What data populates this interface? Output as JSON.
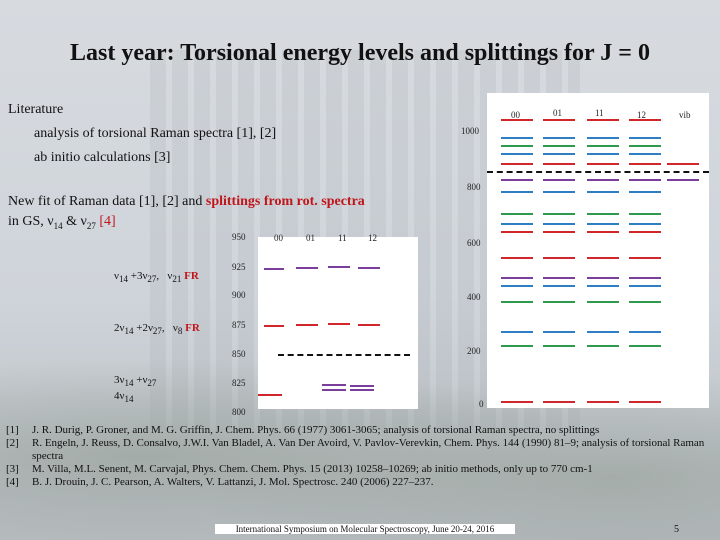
{
  "title": "Last year: Torsional energy levels and splittings for J = 0",
  "literature": {
    "heading": "Literature",
    "line1": "analysis of torsional Raman spectra [1], [2]",
    "line2": "ab initio calculations  [3]"
  },
  "newfit": {
    "prefix": "New fit of Raman data [1], [2] and ",
    "highlight": "splittings from rot. spectra",
    "line2_prefix": " in GS, ν",
    "sub1": "14",
    "mid": " & ν",
    "sub2": "27",
    "ref": " [4]"
  },
  "small_chart": {
    "y_ticks": [
      "950",
      "925",
      "900",
      "875",
      "850",
      "825",
      "800"
    ],
    "columns": [
      "00",
      "01",
      "11",
      "12"
    ],
    "state_labels": [
      {
        "text": "ν14 +3ν27,   ν21  FR"
      },
      {
        "text": "2ν14 +2ν27,   ν8  FR"
      },
      {
        "text": "3ν14 +ν27"
      },
      {
        "text": "4ν14"
      }
    ]
  },
  "big_chart": {
    "y_ticks": [
      "1000",
      "800",
      "600",
      "400",
      "200",
      "0"
    ],
    "columns": [
      "00",
      "01",
      "11",
      "12",
      "vib"
    ]
  },
  "references": [
    {
      "num": "[1]",
      "text": "J. R. Durig, P. Groner, and M. G. Griffin, J. Chem. Phys.  66 (1977) 3061-3065; analysis of torsional Raman spectra, no splittings"
    },
    {
      "num": "[2]",
      "text": "R. Engeln, J. Reuss, D. Consalvo, J.W.I. Van Bladel, A. Van Der Avoird, V. Pavlov-Verevkin, Chem. Phys. 144 (1990) 81–9;  analysis of torsional Raman spectra"
    },
    {
      "num": "[3]",
      "text": "M. Villa, M.L. Senent, M. Carvajal, Phys. Chem. Chem. Phys. 15 (2013) 10258–10269; ab initio methods, only up to 770 cm-1"
    },
    {
      "num": "[4]",
      "text": "B. J. Drouin, J. C. Pearson, A. Walters, V. Lattanzi, J. Mol. Spectrosc. 240 (2006) 227–237."
    }
  ],
  "footer": "International Symposium on Molecular Spectroscopy, June 20-24, 2016",
  "page_number": "5",
  "colors": {
    "red": "#d1262b",
    "purple": "#7b3f9b",
    "blue": "#2f7fc4",
    "green": "#2e9a4e",
    "black": "#111111"
  }
}
